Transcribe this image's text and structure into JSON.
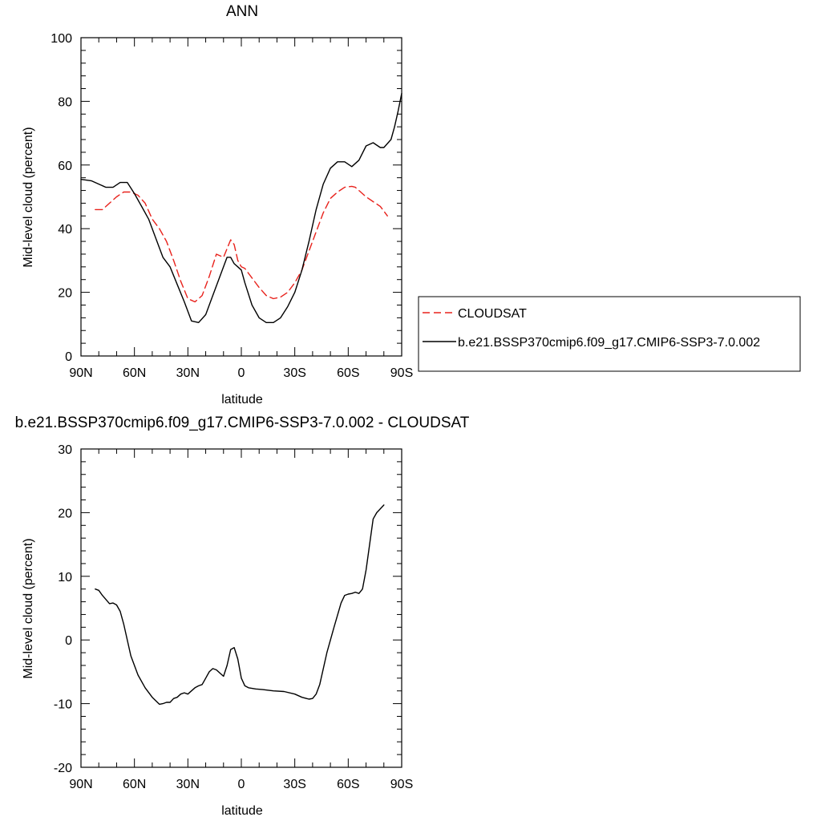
{
  "chart_data": [
    {
      "type": "line",
      "title": "ANN",
      "xlabel": "latitude",
      "ylabel": "Mid-level cloud (percent)",
      "xlim": [
        90,
        -90
      ],
      "ylim": [
        0,
        100
      ],
      "x_ticks": [
        90,
        60,
        30,
        0,
        -30,
        -60,
        -90
      ],
      "x_tick_labels": [
        "90N",
        "60N",
        "30N",
        "0",
        "30S",
        "60S",
        "90S"
      ],
      "y_ticks": [
        0,
        20,
        40,
        60,
        80,
        100
      ],
      "y_tick_labels": [
        "0",
        "20",
        "40",
        "60",
        "80",
        "100"
      ],
      "legend_position": "right",
      "series": [
        {
          "name": "CLOUDSAT",
          "color": "#e8221c",
          "dash": "dashed",
          "x": [
            82,
            78,
            74,
            70,
            66,
            62,
            58,
            54,
            50,
            46,
            42,
            38,
            34,
            30,
            26,
            22,
            18,
            14,
            10,
            6,
            4,
            2,
            0,
            -2,
            -6,
            -10,
            -14,
            -18,
            -22,
            -26,
            -30,
            -34,
            -38,
            -42,
            -46,
            -50,
            -54,
            -58,
            -62,
            -64,
            -66,
            -70,
            -74,
            -78,
            -80,
            -82
          ],
          "y": [
            46,
            46,
            48,
            50,
            51.5,
            51.5,
            50.5,
            48,
            43,
            40,
            36,
            30,
            23.5,
            18,
            17,
            19,
            25,
            32,
            31,
            36.5,
            35,
            30,
            28,
            27.5,
            24.5,
            21.5,
            19,
            18,
            18.5,
            20,
            23,
            27,
            33,
            39,
            45,
            49.5,
            51.5,
            53,
            53.3,
            53,
            52,
            50,
            48.5,
            47,
            45.5,
            44
          ]
        },
        {
          "name": "b.e21.BSSP370cmip6.f09_g17.CMIP6-SSP3-7.0.002",
          "color": "#000000",
          "dash": "solid",
          "x": [
            90,
            84,
            80,
            76,
            72,
            68,
            64,
            60,
            56,
            52,
            48,
            44,
            40,
            36,
            32,
            28,
            24,
            20,
            16,
            12,
            8,
            6,
            4,
            2,
            0,
            -2,
            -6,
            -10,
            -14,
            -18,
            -22,
            -26,
            -30,
            -34,
            -38,
            -42,
            -46,
            -50,
            -54,
            -58,
            -62,
            -66,
            -70,
            -74,
            -78,
            -80,
            -84,
            -86,
            -88,
            -90
          ],
          "y": [
            55.5,
            55,
            54,
            53,
            53,
            54.5,
            54.5,
            51,
            47,
            43,
            37,
            31,
            28,
            22.5,
            17,
            11,
            10.5,
            13,
            19,
            25,
            31,
            31,
            29,
            28,
            27,
            23,
            16,
            12,
            10.5,
            10.5,
            12,
            15.5,
            20,
            27,
            36,
            46,
            54,
            59,
            61,
            61,
            59.5,
            61.5,
            66,
            67,
            65.5,
            65.5,
            68,
            72,
            77,
            82.5
          ]
        }
      ]
    },
    {
      "type": "line",
      "title": "b.e21.BSSP370cmip6.f09_g17.CMIP6-SSP3-7.0.002 - CLOUDSAT",
      "xlabel": "latitude",
      "ylabel": "Mid-level cloud (percent)",
      "xlim": [
        90,
        -90
      ],
      "ylim": [
        -20,
        30
      ],
      "x_ticks": [
        90,
        60,
        30,
        0,
        -30,
        -60,
        -90
      ],
      "x_tick_labels": [
        "90N",
        "60N",
        "30N",
        "0",
        "30S",
        "60S",
        "90S"
      ],
      "y_ticks": [
        -20,
        -10,
        0,
        10,
        20,
        30
      ],
      "y_tick_labels": [
        "-20",
        "-10",
        "0",
        "10",
        "20",
        "30"
      ],
      "series": [
        {
          "color": "#000000",
          "dash": "solid",
          "x": [
            82,
            80,
            78,
            74,
            72,
            70,
            68,
            66,
            62,
            58,
            54,
            50,
            46,
            44,
            42,
            40,
            38,
            36,
            34,
            32,
            30,
            28,
            26,
            24,
            22,
            20,
            18,
            16,
            14,
            12,
            10,
            8,
            6,
            4,
            2,
            0,
            -2,
            -4,
            -8,
            -12,
            -18,
            -24,
            -30,
            -34,
            -38,
            -40,
            -42,
            -44,
            -48,
            -52,
            -56,
            -58,
            -60,
            -62,
            -64,
            -66,
            -68,
            -70,
            -72,
            -74,
            -76,
            -80
          ],
          "y": [
            8,
            7.8,
            7,
            5.7,
            5.8,
            5.5,
            4.5,
            2.5,
            -2.5,
            -5.5,
            -7.5,
            -9,
            -10.1,
            -10,
            -9.8,
            -9.8,
            -9.2,
            -9,
            -8.5,
            -8.3,
            -8.5,
            -8,
            -7.5,
            -7.2,
            -7,
            -6,
            -5,
            -4.5,
            -4.7,
            -5.2,
            -5.7,
            -4,
            -1.5,
            -1.2,
            -3,
            -6,
            -7.2,
            -7.5,
            -7.7,
            -7.8,
            -8,
            -8.1,
            -8.5,
            -9,
            -9.3,
            -9.2,
            -8.5,
            -7,
            -2,
            2,
            5.8,
            7,
            7.2,
            7.3,
            7.5,
            7.3,
            8,
            11,
            15,
            19,
            20,
            21.2
          ]
        }
      ]
    }
  ]
}
